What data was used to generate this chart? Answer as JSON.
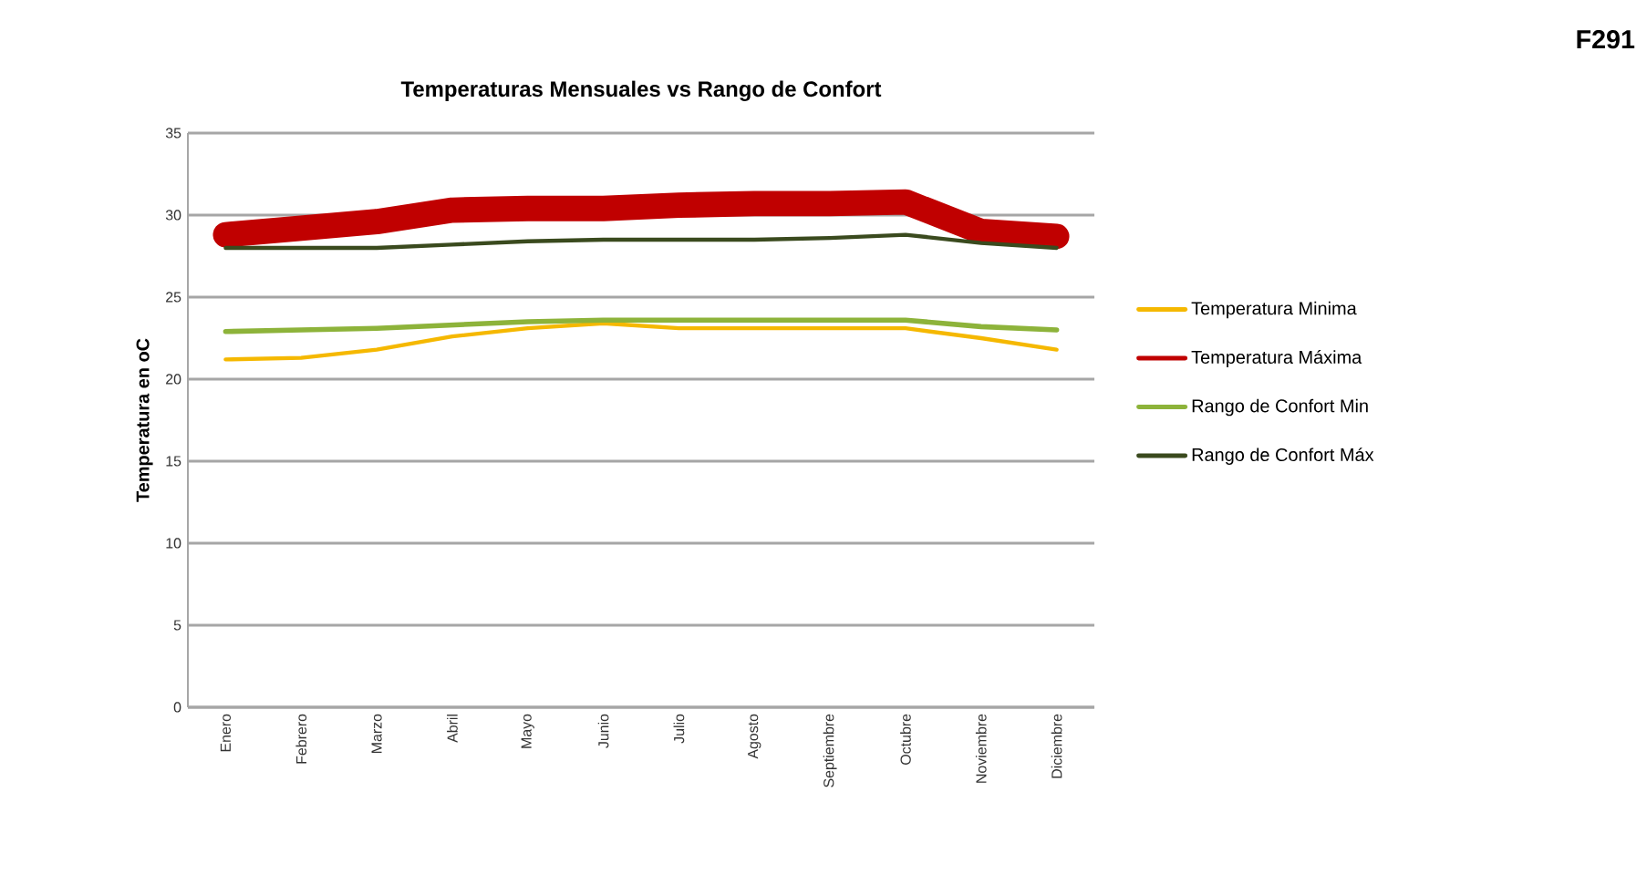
{
  "chart_data": {
    "type": "line",
    "title": "Temperaturas Mensuales vs Rango de Confort",
    "ylabel": "Temperatura en oC",
    "annotations": [
      "F291"
    ],
    "categories": [
      "Enero",
      "Febrero",
      "Marzo",
      "Abril",
      "Mayo",
      "Junio",
      "Julio",
      "Agosto",
      "Septiembre",
      "Octubre",
      "Noviembre",
      "Diciembre"
    ],
    "series": [
      {
        "name": "Temperatura Minima",
        "color": "#f5b800",
        "values": [
          21.2,
          21.3,
          21.8,
          22.6,
          23.1,
          23.4,
          23.1,
          23.1,
          23.1,
          23.1,
          22.5,
          21.8
        ]
      },
      {
        "name": "Temperatura Máxima",
        "color": "#c00000",
        "values": [
          28.8,
          29.2,
          29.6,
          30.3,
          30.4,
          30.4,
          30.6,
          30.7,
          30.7,
          30.8,
          29.0,
          28.7
        ]
      },
      {
        "name": "Rango de Confort Min",
        "color": "#8db33a",
        "values": [
          22.9,
          23.0,
          23.1,
          23.3,
          23.5,
          23.6,
          23.6,
          23.6,
          23.6,
          23.6,
          23.2,
          23.0
        ]
      },
      {
        "name": "Rango de Confort Máx",
        "color": "#3a4a1e",
        "values": [
          28.0,
          28.0,
          28.0,
          28.2,
          28.4,
          28.5,
          28.5,
          28.5,
          28.6,
          28.8,
          28.3,
          28.0
        ]
      }
    ],
    "ylim": [
      0,
      35
    ],
    "yticks": [
      0,
      5,
      10,
      15,
      20,
      25,
      30,
      35
    ],
    "grid": "y",
    "legend": "right",
    "marker": "none",
    "line_style": "solid"
  }
}
